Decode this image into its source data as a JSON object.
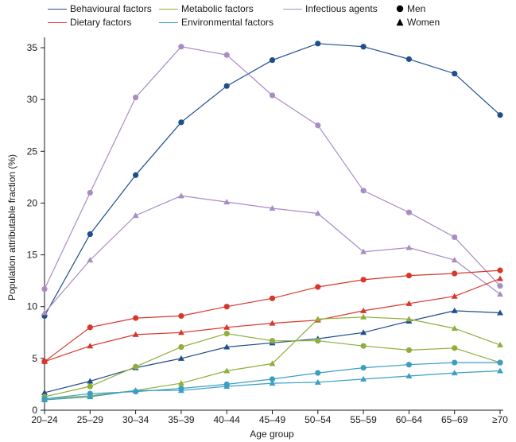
{
  "chart_data": {
    "type": "line",
    "title": "",
    "xlabel": "Age group",
    "ylabel": "Population attributable fraction (%)",
    "categories": [
      "20–24",
      "25–29",
      "30–34",
      "35–39",
      "40–44",
      "45–49",
      "50–54",
      "55–59",
      "60–64",
      "65–69",
      "≥70"
    ],
    "ylim": [
      0,
      36
    ],
    "yticks": [
      0,
      5,
      10,
      15,
      20,
      25,
      30,
      35
    ],
    "grid": false,
    "legend_position": "top",
    "legend": {
      "factors": [
        {
          "label": "Behavioural factors",
          "color": "#1f4e8c"
        },
        {
          "label": "Metabolic factors",
          "color": "#8fae3a"
        },
        {
          "label": "Infectious agents",
          "color": "#a98cc4"
        },
        {
          "label": "Dietary factors",
          "color": "#d9362b"
        },
        {
          "label": "Environmental factors",
          "color": "#3a9fc2"
        }
      ],
      "markers": [
        {
          "label": "Men",
          "shape": "circle"
        },
        {
          "label": "Women",
          "shape": "triangle"
        }
      ]
    },
    "series": [
      {
        "factor": "Behavioural factors",
        "sex": "Men",
        "color": "#1f4e8c",
        "marker": "circle",
        "values": [
          9.1,
          17.0,
          22.7,
          27.8,
          31.3,
          33.8,
          35.4,
          35.1,
          33.9,
          32.5,
          28.5
        ]
      },
      {
        "factor": "Behavioural factors",
        "sex": "Women",
        "color": "#1f4e8c",
        "marker": "triangle",
        "values": [
          1.7,
          2.8,
          4.1,
          5.0,
          6.1,
          6.5,
          6.9,
          7.5,
          8.6,
          9.6,
          9.4
        ]
      },
      {
        "factor": "Infectious agents",
        "sex": "Men",
        "color": "#a98cc4",
        "marker": "circle",
        "values": [
          11.7,
          21.0,
          30.2,
          35.1,
          34.3,
          30.4,
          27.5,
          21.2,
          19.1,
          16.7,
          12.0
        ]
      },
      {
        "factor": "Infectious agents",
        "sex": "Women",
        "color": "#a98cc4",
        "marker": "triangle",
        "values": [
          9.4,
          14.5,
          18.8,
          20.7,
          20.1,
          19.5,
          19.0,
          15.3,
          15.7,
          14.5,
          11.2
        ]
      },
      {
        "factor": "Dietary factors",
        "sex": "Men",
        "color": "#d9362b",
        "marker": "circle",
        "values": [
          4.7,
          8.0,
          8.9,
          9.1,
          10.0,
          10.8,
          11.9,
          12.6,
          13.0,
          13.2,
          13.5
        ]
      },
      {
        "factor": "Dietary factors",
        "sex": "Women",
        "color": "#d9362b",
        "marker": "triangle",
        "values": [
          4.7,
          6.2,
          7.3,
          7.5,
          8.0,
          8.4,
          8.7,
          9.6,
          10.3,
          11.0,
          12.7
        ]
      },
      {
        "factor": "Metabolic factors",
        "sex": "Men",
        "color": "#8fae3a",
        "marker": "circle",
        "values": [
          1.3,
          2.3,
          4.2,
          6.1,
          7.4,
          6.7,
          6.7,
          6.2,
          5.8,
          6.0,
          4.6
        ]
      },
      {
        "factor": "Metabolic factors",
        "sex": "Women",
        "color": "#8fae3a",
        "marker": "triangle",
        "values": [
          1.1,
          1.4,
          1.9,
          2.6,
          3.8,
          4.5,
          8.8,
          9.0,
          8.8,
          7.9,
          6.3
        ]
      },
      {
        "factor": "Environmental factors",
        "sex": "Men",
        "color": "#3a9fc2",
        "marker": "circle",
        "values": [
          1.1,
          1.6,
          1.8,
          2.1,
          2.5,
          3.0,
          3.6,
          4.1,
          4.4,
          4.6,
          4.6
        ]
      },
      {
        "factor": "Environmental factors",
        "sex": "Women",
        "color": "#3a9fc2",
        "marker": "triangle",
        "values": [
          1.0,
          1.3,
          1.9,
          1.9,
          2.3,
          2.6,
          2.7,
          3.0,
          3.3,
          3.6,
          3.8
        ]
      }
    ]
  }
}
